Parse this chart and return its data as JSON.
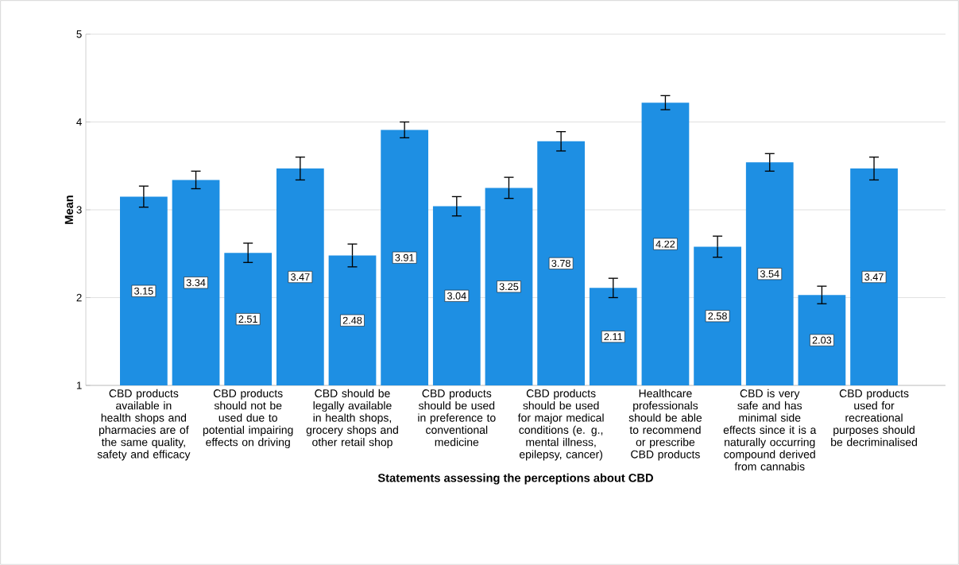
{
  "chart_data": {
    "type": "bar",
    "xlabel": "Statements assessing the perceptions about CBD",
    "ylabel": "Mean",
    "categories": [
      "CBD products available in health shops and pharmacies are of the same quality, safety and efficacy",
      null,
      "CBD products should not be used due to potential impairing effects on driving",
      null,
      "CBD should be legally available in health shops, grocery shops and other retail shop",
      null,
      "CBD products should be used in preference to conventional medicine",
      null,
      "CBD products should be used for major medical conditions (e. g., mental illness, epilepsy, cancer)",
      null,
      "Healthcare professionals should be able to recommend or prescribe CBD products",
      null,
      "CBD is very safe and has minimal side effects since it is a naturally occurring compound derived from cannabis",
      null,
      "CBD products used for recreational purposes should be decriminalised"
    ],
    "values": [
      3.15,
      3.34,
      2.51,
      3.47,
      2.48,
      3.91,
      3.04,
      3.25,
      3.78,
      2.11,
      4.22,
      2.58,
      3.54,
      2.03,
      3.47
    ],
    "errors": [
      0.12,
      0.1,
      0.11,
      0.13,
      0.13,
      0.09,
      0.11,
      0.12,
      0.11,
      0.11,
      0.08,
      0.12,
      0.1,
      0.1,
      0.13
    ],
    "color": "#1e8fe3",
    "ylim": [
      1,
      5
    ],
    "yticks": [
      1,
      2,
      3,
      4,
      5
    ],
    "grid": "y",
    "data_labels": true
  }
}
